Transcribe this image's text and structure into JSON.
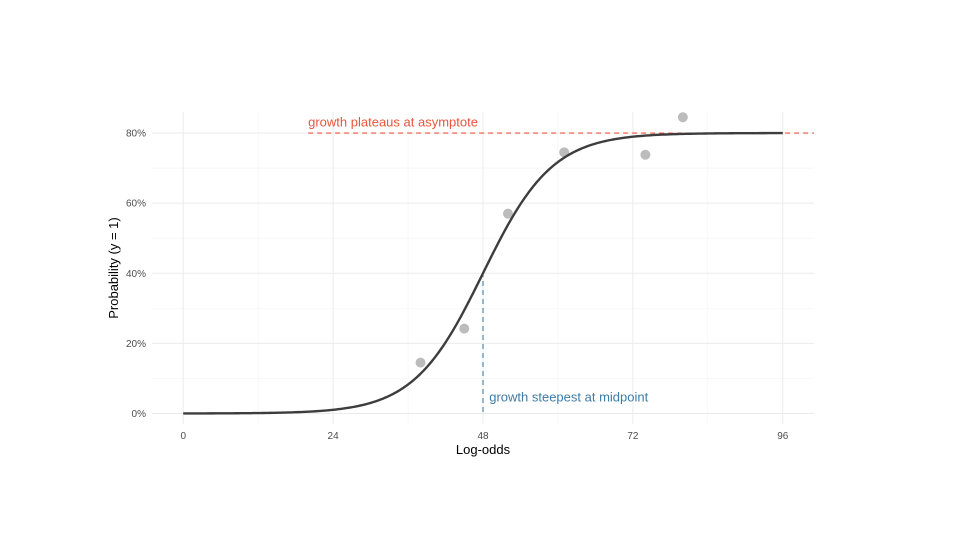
{
  "chart_data": {
    "type": "line",
    "xlabel": "Log-odds",
    "ylabel": "Probability (y = 1)",
    "xlim": [
      -5,
      101
    ],
    "ylim": [
      -0.03,
      0.86
    ],
    "x_ticks": [
      0,
      24,
      48,
      72,
      96
    ],
    "x_tick_labels": [
      "0",
      "24",
      "48",
      "72",
      "96"
    ],
    "y_ticks": [
      0,
      0.2,
      0.4,
      0.6,
      0.8
    ],
    "y_tick_labels": [
      "0%",
      "20%",
      "40%",
      "60%",
      "80%"
    ],
    "grid": true,
    "curve": {
      "model": "logistic",
      "asymptote": 0.8,
      "midpoint": 48,
      "rate": 0.18,
      "x_range": [
        0,
        96
      ],
      "color": "#3d3d3d"
    },
    "points": {
      "color": "#a6a6a6",
      "x": [
        38,
        45,
        52,
        61,
        74,
        80
      ],
      "y": [
        0.145,
        0.242,
        0.57,
        0.745,
        0.738,
        0.845
      ]
    },
    "annotations": [
      {
        "text": "growth plateaus at asymptote",
        "color": "#e8553d",
        "line": "horizontal",
        "y": 0.8,
        "x_start": 20,
        "label_x": 20,
        "label_y": 0.83
      },
      {
        "text": "growth steepest at midpoint",
        "color": "#3e7ca5",
        "line": "vertical",
        "x": 48,
        "y_end": 0.4,
        "label_x": 49,
        "label_y": 0.045
      }
    ]
  }
}
